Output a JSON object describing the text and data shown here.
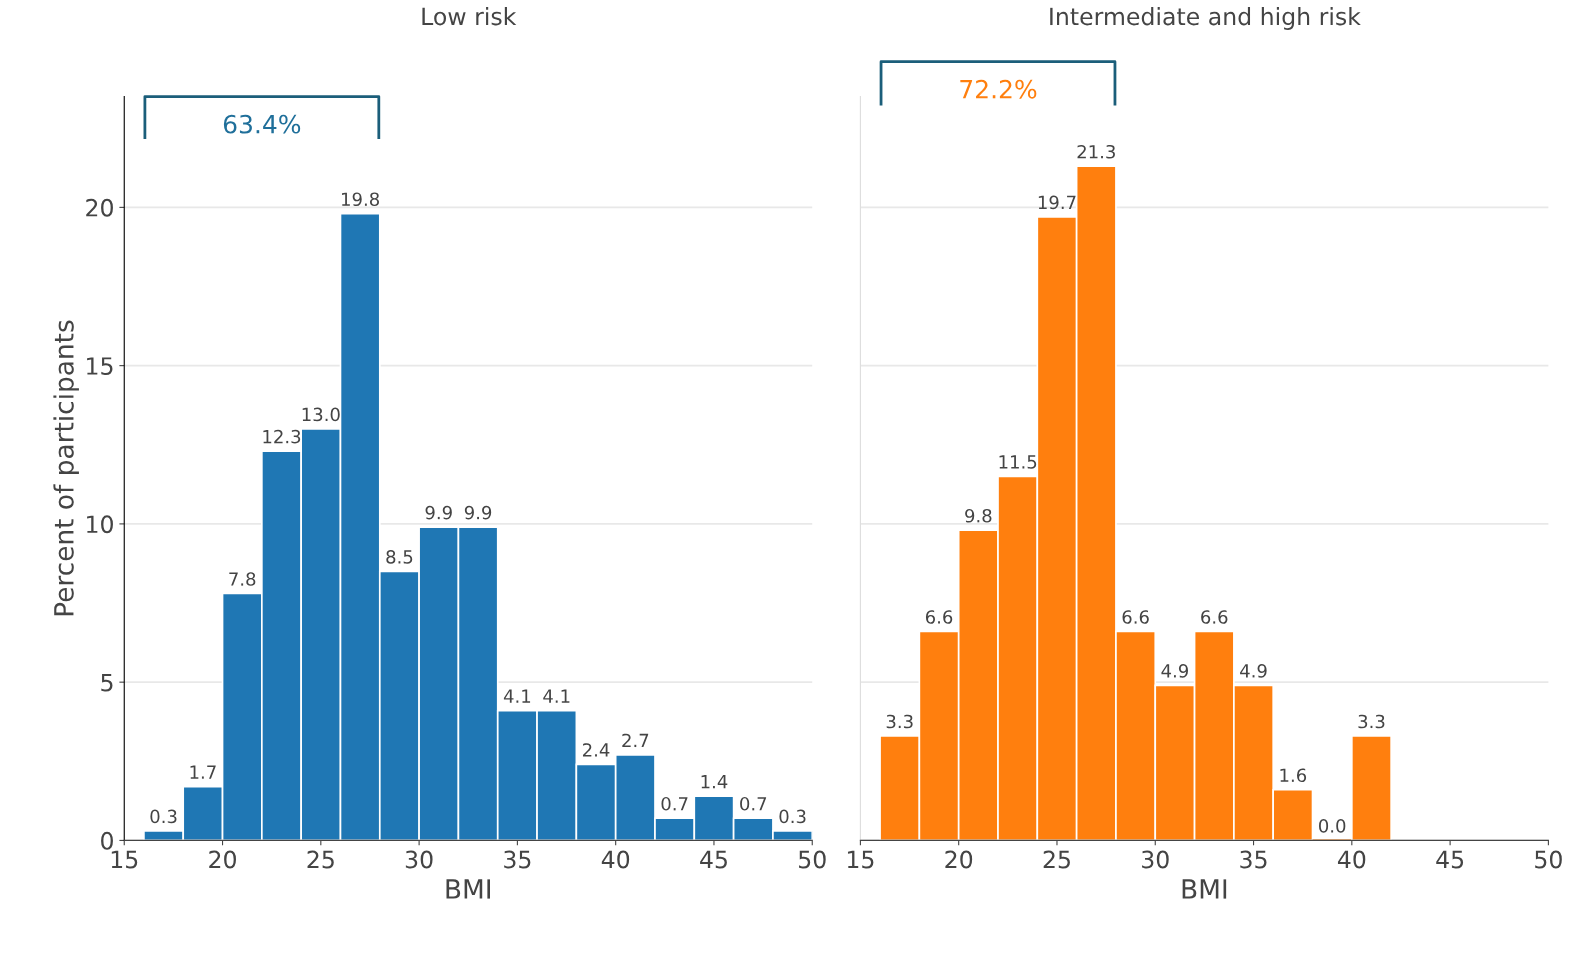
{
  "chart_data": [
    {
      "type": "histogram",
      "title": "Low risk",
      "xlabel": "BMI",
      "ylabel": "Percent of participants",
      "color": "#1f77b4",
      "bins": [
        16,
        18,
        20,
        22,
        24,
        26,
        28,
        30,
        32,
        34,
        36,
        38,
        40,
        42,
        44,
        46,
        48,
        50
      ],
      "values": [
        0.3,
        1.7,
        7.8,
        12.3,
        13.0,
        19.8,
        8.5,
        9.9,
        9.9,
        4.1,
        4.1,
        2.4,
        2.7,
        0.7,
        1.4,
        0.7,
        0.3
      ],
      "value_labels": [
        "0.3",
        "1.7",
        "7.8",
        "12.3",
        "13.0",
        "19.8",
        "8.5",
        "9.9",
        "9.9",
        "4.1",
        "4.1",
        "2.4",
        "2.7",
        "0.7",
        "1.4",
        "0.7",
        "0.3"
      ],
      "annotations": [
        "63.4%"
      ],
      "xlim": [
        15,
        50
      ],
      "xticks": [
        15,
        20,
        25,
        30,
        35,
        40,
        45,
        50
      ],
      "ylim": [
        0,
        23.5
      ],
      "yticks": [
        0,
        5,
        10,
        15,
        20
      ],
      "grid": "y"
    },
    {
      "type": "histogram",
      "title": "Intermediate and high risk",
      "xlabel": "BMI",
      "color": "#ff7f0e",
      "bins": [
        16,
        18,
        20,
        22,
        24,
        26,
        28,
        30,
        32,
        34,
        36,
        38,
        40,
        42
      ],
      "values": [
        3.3,
        6.6,
        9.8,
        11.5,
        19.7,
        21.3,
        6.6,
        4.9,
        6.6,
        4.9,
        1.6,
        0.0,
        3.3
      ],
      "value_labels": [
        "3.3",
        "6.6",
        "9.8",
        "11.5",
        "19.7",
        "21.3",
        "6.6",
        "4.9",
        "6.6",
        "4.9",
        "1.6",
        "0.0",
        "3.3"
      ],
      "annotations": [
        "72.2%"
      ],
      "xlim": [
        15,
        50
      ],
      "xticks": [
        15,
        20,
        25,
        30,
        35,
        40,
        45,
        50
      ],
      "ylim": [
        0,
        23.5
      ],
      "yticks": [
        0,
        5,
        10,
        15,
        20
      ],
      "grid": "y",
      "tick_labels": "x"
    }
  ]
}
